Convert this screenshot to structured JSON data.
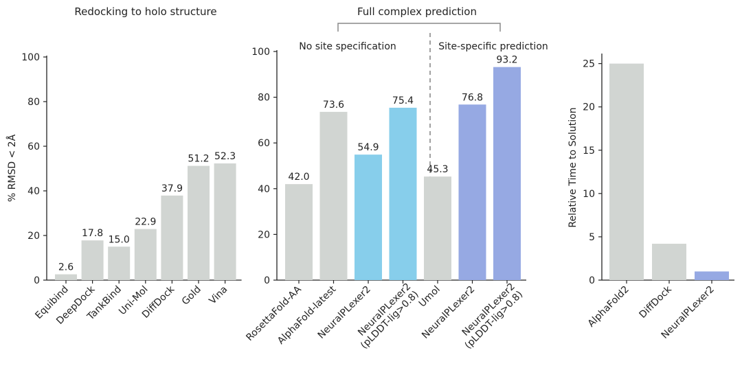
{
  "figure": {
    "group_title": "Full complex prediction"
  },
  "chart_data": [
    {
      "type": "bar",
      "title": "Redocking to holo structure",
      "ylabel": "% RMSD < 2Å",
      "xlabel": "",
      "ylim": [
        0,
        100
      ],
      "yticks": [
        "0",
        "20",
        "40",
        "60",
        "80",
        "100"
      ],
      "categories": [
        "Equibind",
        "DeepDock",
        "TankBind",
        "Uni-Mol",
        "DiffDock",
        "Gold",
        "Vina"
      ],
      "values": [
        2.6,
        17.8,
        15.0,
        22.9,
        37.9,
        51.2,
        52.3
      ],
      "labels": [
        "2.6",
        "17.8",
        "15.0",
        "22.9",
        "37.9",
        "51.2",
        "52.3"
      ],
      "colors": [
        "#d1d5d2",
        "#d1d5d2",
        "#d1d5d2",
        "#d1d5d2",
        "#d1d5d2",
        "#d1d5d2",
        "#d1d5d2"
      ]
    },
    {
      "type": "bar",
      "title": "",
      "ylabel": "",
      "xlabel": "",
      "ylim": [
        0,
        100
      ],
      "yticks": [
        "0",
        "20",
        "40",
        "60",
        "80",
        "100"
      ],
      "section_labels": [
        "No site specification",
        "Site-specific prediction"
      ],
      "categories": [
        "RosettaFold-AA",
        "AlphaFold-latest",
        "NeuralPLexer2",
        "NeuralPLexer2\n(pLDDT-lig>0.8)",
        "Umol",
        "NeuralPLexer2",
        "NeuralPLexer2\n(pLDDT-lig>0.8)"
      ],
      "values": [
        42.0,
        73.6,
        54.9,
        75.4,
        45.3,
        76.8,
        93.2
      ],
      "labels": [
        "42.0",
        "73.6",
        "54.9",
        "75.4",
        "45.3",
        "76.8",
        "93.2"
      ],
      "colors": [
        "#d1d5d2",
        "#d1d5d2",
        "#87ceeb",
        "#87ceeb",
        "#d1d5d2",
        "#96a9e3",
        "#96a9e3"
      ],
      "divider_after_index": 3
    },
    {
      "type": "bar",
      "title": "",
      "ylabel": "Relative Time to Solution",
      "xlabel": "",
      "ylim": [
        0,
        26
      ],
      "yticks": [
        "0",
        "5",
        "10",
        "15",
        "20",
        "25"
      ],
      "categories": [
        "AlphaFold2",
        "DiffDock",
        "NeuralPLexer2"
      ],
      "values": [
        25,
        4.2,
        1
      ],
      "colors": [
        "#d1d5d2",
        "#d1d5d2",
        "#96a9e3"
      ]
    }
  ]
}
